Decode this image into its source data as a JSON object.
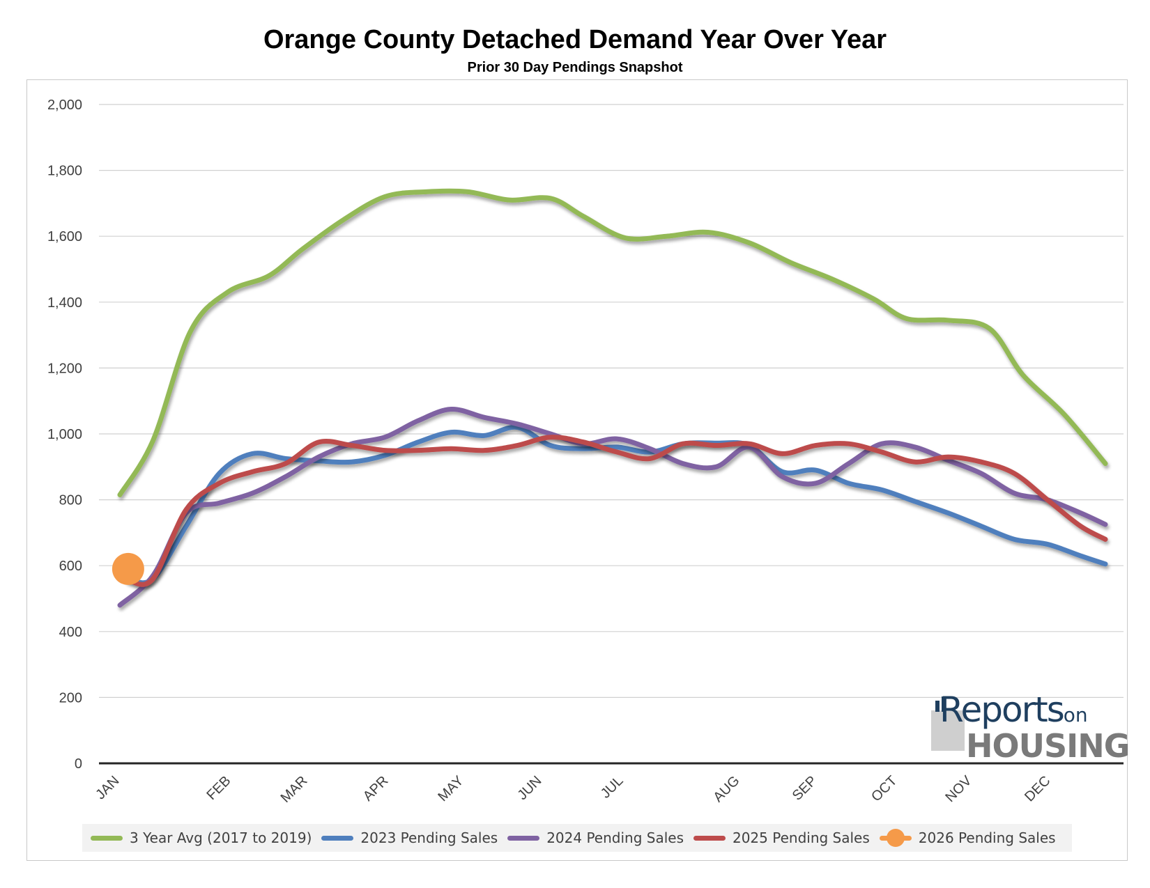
{
  "chart_data": {
    "type": "line",
    "title": "Orange County Detached Demand Year Over Year",
    "subtitle": "Prior 30 Day Pendings Snapshot",
    "ylim": [
      0,
      2000
    ],
    "yticks": [
      0,
      200,
      400,
      600,
      800,
      1000,
      1200,
      1400,
      1600,
      1800,
      2000
    ],
    "ytick_labels": [
      "0",
      "200",
      "400",
      "600",
      "800",
      "1,000",
      "1,200",
      "1,400",
      "1,600",
      "1,800",
      "2,000"
    ],
    "x_range": [
      1,
      12.9
    ],
    "x_ticks": [
      1,
      2.5,
      3.5,
      4.5,
      5.5,
      6.5,
      7.5,
      9,
      10,
      11,
      12,
      13
    ],
    "x_tick_labels": [
      "JAN",
      "FEB",
      "MAR",
      "APR",
      "MAY",
      "JUN",
      "JUL",
      "AUG",
      "SEP",
      "OCT",
      "NOV",
      "DEC"
    ],
    "grid": true,
    "legend_position": "bottom",
    "series": [
      {
        "name": "3 Year Avg (2017 to 2019)",
        "color": "#93b956",
        "x": [
          1,
          1.4,
          1.85,
          2.3,
          2.8,
          3.2,
          3.7,
          4.2,
          4.7,
          5.2,
          5.7,
          6.2,
          6.6,
          7.1,
          7.6,
          8.1,
          8.6,
          9.1,
          9.6,
          10.1,
          10.5,
          11,
          11.5,
          11.9,
          12.4,
          12.9
        ],
        "y": [
          815,
          980,
          1310,
          1430,
          1480,
          1560,
          1650,
          1720,
          1735,
          1735,
          1710,
          1715,
          1660,
          1595,
          1600,
          1612,
          1580,
          1520,
          1470,
          1410,
          1350,
          1345,
          1320,
          1180,
          1060,
          910
        ]
      },
      {
        "name": "2023 Pending Sales",
        "color": "#4f7fbd",
        "x": [
          1.1,
          1.4,
          1.8,
          2.2,
          2.6,
          3.0,
          3.4,
          3.8,
          4.2,
          4.6,
          5.0,
          5.4,
          5.8,
          6.2,
          6.6,
          7.0,
          7.4,
          7.8,
          8.2,
          8.6,
          9.0,
          9.4,
          9.8,
          10.2,
          10.6,
          11.0,
          11.4,
          11.8,
          12.2,
          12.6,
          12.9
        ],
        "y": [
          560,
          560,
          720,
          880,
          940,
          925,
          918,
          915,
          935,
          975,
          1005,
          995,
          1020,
          965,
          955,
          960,
          945,
          970,
          972,
          965,
          885,
          890,
          850,
          830,
          795,
          760,
          720,
          680,
          665,
          630,
          605
        ]
      },
      {
        "name": "2024 Pending Sales",
        "color": "#7f62a2",
        "x": [
          1,
          1.4,
          1.8,
          2.2,
          2.6,
          3.0,
          3.4,
          3.8,
          4.2,
          4.6,
          5.0,
          5.4,
          5.8,
          6.2,
          6.6,
          7.0,
          7.4,
          7.8,
          8.2,
          8.6,
          9.0,
          9.4,
          9.8,
          10.2,
          10.6,
          11.0,
          11.4,
          11.8,
          12.2,
          12.6,
          12.9
        ],
        "y": [
          480,
          570,
          760,
          790,
          820,
          870,
          930,
          970,
          990,
          1040,
          1075,
          1050,
          1030,
          1000,
          970,
          985,
          955,
          910,
          900,
          960,
          870,
          850,
          910,
          970,
          960,
          920,
          880,
          820,
          800,
          760,
          725
        ]
      },
      {
        "name": "2025 Pending Sales",
        "color": "#bd4b4b",
        "x": [
          1.1,
          1.4,
          1.8,
          2.2,
          2.6,
          3.0,
          3.4,
          3.8,
          4.2,
          4.6,
          5.0,
          5.4,
          5.8,
          6.2,
          6.6,
          7.0,
          7.4,
          7.8,
          8.2,
          8.6,
          9.0,
          9.4,
          9.8,
          10.2,
          10.6,
          11.0,
          11.4,
          11.8,
          12.2,
          12.6,
          12.9
        ],
        "y": [
          555,
          560,
          770,
          850,
          885,
          910,
          975,
          965,
          950,
          950,
          955,
          950,
          965,
          990,
          975,
          945,
          925,
          970,
          965,
          970,
          940,
          965,
          970,
          945,
          915,
          930,
          915,
          880,
          800,
          720,
          680
        ]
      },
      {
        "name": "2026 Pending Sales",
        "color": "#f59a49",
        "marker": "circle",
        "x": [
          1.1
        ],
        "y": [
          590
        ]
      }
    ]
  },
  "logo": {
    "word_top": "Reports",
    "word_on": "on",
    "word_bottom": "HOUSING"
  }
}
